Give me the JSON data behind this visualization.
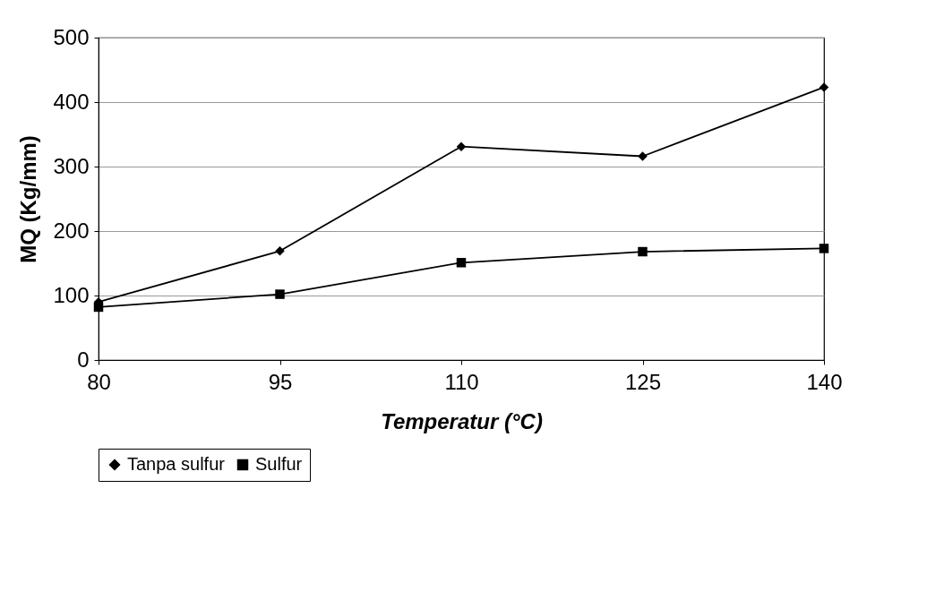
{
  "chart_data": {
    "type": "line",
    "xlabel": "Temperatur (°C)",
    "ylabel": "MQ (Kg/mm)",
    "x": [
      80,
      95,
      110,
      125,
      140
    ],
    "xlim": [
      80,
      140
    ],
    "xticks": [
      80,
      95,
      110,
      125,
      140
    ],
    "ylim": [
      0,
      500
    ],
    "yticks": [
      0,
      100,
      200,
      300,
      400,
      500
    ],
    "grid": "y",
    "legend": "bottom",
    "line_style": "solid",
    "series": [
      {
        "name": "Tanpa sulfur",
        "color": "#000000",
        "marker": "diamond",
        "values": [
          90,
          169,
          331,
          316,
          423
        ]
      },
      {
        "name": "Sulfur",
        "color": "#000000",
        "marker": "square",
        "values": [
          82,
          102,
          151,
          168,
          173
        ]
      }
    ]
  }
}
